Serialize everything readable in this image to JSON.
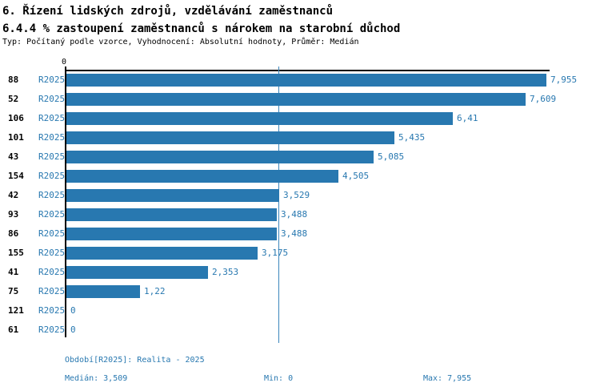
{
  "header": {
    "title_line1": "6. Řízení lidských zdrojů, vzdělávání zaměstnanců",
    "title_line2": "6.4.4 % zastoupení zaměstnanců s nárokem na starobní důchod",
    "meta": "Typ: Počítaný podle vzorce, Vyhodnocení: Absolutní hodnoty, Průměr: Medián"
  },
  "colors": {
    "bar": "#2878b0",
    "accent_text": "#2878b0",
    "axis": "#000000",
    "median_line": "#3c86bc"
  },
  "chart_data": {
    "type": "bar",
    "orientation": "horizontal",
    "title": "6.4.4 % zastoupení zaměstnanců s nárokem na starobní důchod",
    "value_axis": {
      "min": 0,
      "max": 7.955,
      "origin_tick_label": "0"
    },
    "median_value": 3.509,
    "legend": "none",
    "grid": "off",
    "categories": [
      "88",
      "52",
      "106",
      "101",
      "43",
      "154",
      "42",
      "93",
      "86",
      "155",
      "41",
      "75",
      "121",
      "61"
    ],
    "rows": [
      {
        "id": "88",
        "period": "R2025",
        "value": 7.955,
        "value_label": "7,955"
      },
      {
        "id": "52",
        "period": "R2025",
        "value": 7.609,
        "value_label": "7,609"
      },
      {
        "id": "106",
        "period": "R2025",
        "value": 6.41,
        "value_label": "6,41"
      },
      {
        "id": "101",
        "period": "R2025",
        "value": 5.435,
        "value_label": "5,435"
      },
      {
        "id": "43",
        "period": "R2025",
        "value": 5.085,
        "value_label": "5,085"
      },
      {
        "id": "154",
        "period": "R2025",
        "value": 4.505,
        "value_label": "4,505"
      },
      {
        "id": "42",
        "period": "R2025",
        "value": 3.529,
        "value_label": "3,529"
      },
      {
        "id": "93",
        "period": "R2025",
        "value": 3.488,
        "value_label": "3,488"
      },
      {
        "id": "86",
        "period": "R2025",
        "value": 3.488,
        "value_label": "3,488"
      },
      {
        "id": "155",
        "period": "R2025",
        "value": 3.175,
        "value_label": "3,175"
      },
      {
        "id": "41",
        "period": "R2025",
        "value": 2.353,
        "value_label": "2,353"
      },
      {
        "id": "75",
        "period": "R2025",
        "value": 1.22,
        "value_label": "1,22"
      },
      {
        "id": "121",
        "period": "R2025",
        "value": 0,
        "value_label": "0"
      },
      {
        "id": "61",
        "period": "R2025",
        "value": 0,
        "value_label": "0"
      }
    ]
  },
  "footer": {
    "period_label": "Období[R2025]: Realita - 2025",
    "median_label": "Medián: 3,509",
    "min_label": "Min: 0",
    "max_label": "Max: 7,955"
  }
}
